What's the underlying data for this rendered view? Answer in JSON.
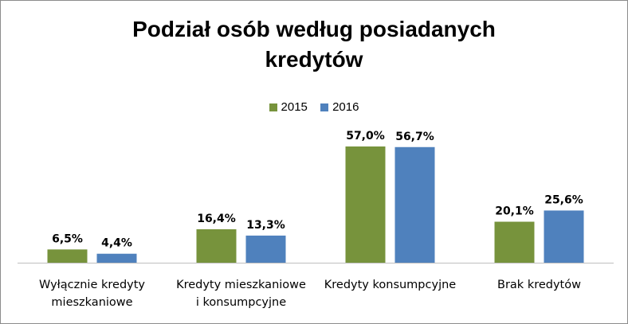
{
  "chart_data": {
    "type": "bar",
    "title_lines": [
      "Podział  osób według posiadanych",
      "kredytów"
    ],
    "categories": [
      [
        "Wyłącznie kredyty",
        "mieszkaniowe"
      ],
      [
        "Kredyty mieszkaniowe",
        "i konsumpcyjne"
      ],
      [
        "Kredyty konsumpcyjne"
      ],
      [
        "Brak kredytów"
      ]
    ],
    "series": [
      {
        "name": "2015",
        "color": "#77933c",
        "values": [
          6.5,
          16.4,
          57.0,
          20.1
        ],
        "labels": [
          "6,5%",
          "16,4%",
          "57,0%",
          "20,1%"
        ]
      },
      {
        "name": "2016",
        "color": "#4f81bd",
        "values": [
          4.4,
          13.3,
          56.7,
          25.6
        ],
        "labels": [
          "4,4%",
          "13,3%",
          "56,7%",
          "25,6%"
        ]
      }
    ],
    "ylim": [
      0,
      57.0
    ],
    "legend_position": "top-center",
    "grid": false
  }
}
